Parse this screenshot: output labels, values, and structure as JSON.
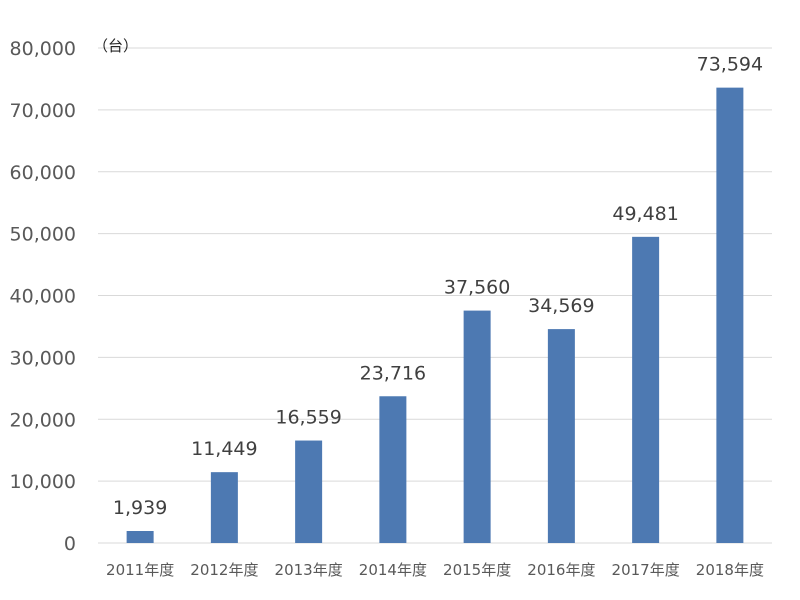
{
  "chart_data": {
    "type": "bar",
    "unit_label": "（台）",
    "categories": [
      "2011年度",
      "2012年度",
      "2013年度",
      "2014年度",
      "2015年度",
      "2016年度",
      "2017年度",
      "2018年度"
    ],
    "values": [
      1939,
      11449,
      16559,
      23716,
      37560,
      34569,
      49481,
      73594
    ],
    "data_labels": [
      "1,939",
      "11,449",
      "16,559",
      "23,716",
      "37,560",
      "34,569",
      "49,481",
      "73,594"
    ],
    "yticks": [
      0,
      10000,
      20000,
      30000,
      40000,
      50000,
      60000,
      70000,
      80000
    ],
    "ytick_labels": [
      "0",
      "10,000",
      "20,000",
      "30,000",
      "40,000",
      "50,000",
      "60,000",
      "70,000",
      "80,000"
    ],
    "ylim": [
      0,
      80000
    ],
    "grid": true,
    "bar_color": "#4d79b2",
    "grid_color": "#d9d9d9"
  }
}
